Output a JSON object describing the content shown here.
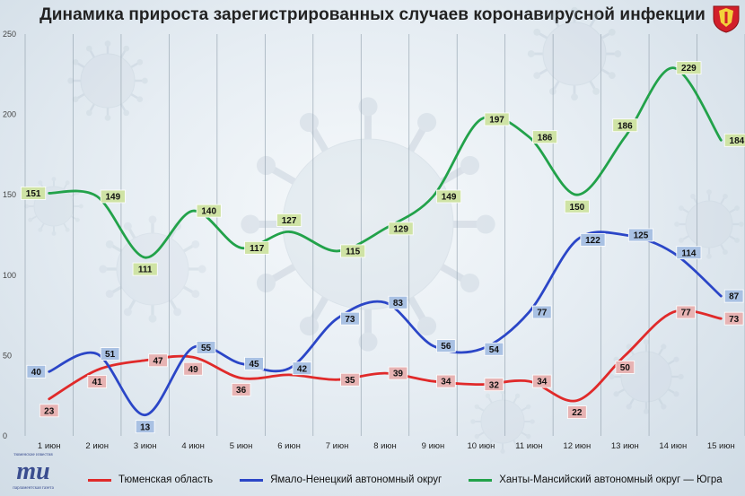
{
  "title": "Динамика прироста зарегистрированных случаев коронавирусной инфекции",
  "chart_data": {
    "type": "line",
    "categories": [
      "1 июн",
      "2 июн",
      "3 июн",
      "4 июн",
      "5 июн",
      "6 июн",
      "7 июн",
      "8 июн",
      "9 июн",
      "10 июн",
      "11 июн",
      "12 июн",
      "13 июн",
      "14 июн",
      "15 июн"
    ],
    "ylim": [
      0,
      250
    ],
    "yticks": [
      0,
      50,
      100,
      150,
      200,
      250
    ],
    "grid": "vertical",
    "legend_position": "bottom",
    "series": [
      {
        "name": "Тюменская область",
        "color": "#e02a2a",
        "label_color": "#e7b3b3",
        "values": [
          23,
          41,
          47,
          49,
          36,
          38,
          35,
          39,
          34,
          32,
          34,
          22,
          50,
          77,
          73
        ],
        "labels": [
          "23",
          "41",
          "47",
          "49",
          "36",
          "",
          "35",
          "39",
          "34",
          "32",
          "34",
          "22",
          "50",
          "77",
          "73"
        ]
      },
      {
        "name": "Ямало-Ненецкий автономный округ",
        "color": "#2b46c7",
        "label_color": "#a9c1e3",
        "values": [
          40,
          51,
          13,
          55,
          45,
          42,
          73,
          83,
          56,
          54,
          77,
          122,
          125,
          114,
          87
        ],
        "labels": [
          "40",
          "51",
          "13",
          "55",
          "45",
          "42",
          "73",
          "83",
          "56",
          "54",
          "77",
          "122",
          "125",
          "114",
          "87"
        ]
      },
      {
        "name": "Ханты-Мансийский автономный округ — Югра",
        "color": "#22a24a",
        "label_color": "#cfe3a5",
        "values": [
          151,
          149,
          111,
          140,
          117,
          127,
          115,
          129,
          149,
          197,
          186,
          150,
          186,
          229,
          184
        ],
        "labels": [
          "151",
          "149",
          "111",
          "140",
          "117",
          "127",
          "115",
          "129",
          "149",
          "197",
          "186",
          "150",
          "186",
          "229",
          "184"
        ]
      }
    ]
  },
  "logo": {
    "line1": "тюменские известия",
    "line2": "парламентская газета"
  }
}
